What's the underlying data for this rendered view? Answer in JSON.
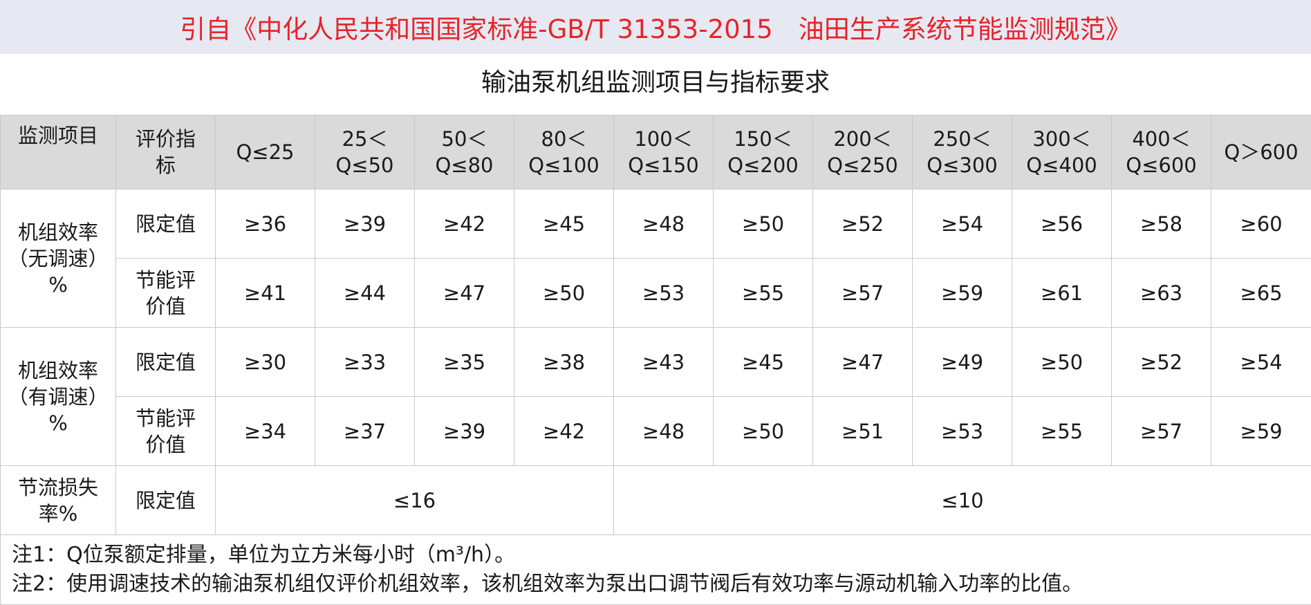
{
  "banner": {
    "text": "引自《中化人民共和国国家标准-GB/T 31353-2015　油田生产系统节能监测规范》"
  },
  "subtitle": "输油泵机组监测项目与指标要求",
  "table": {
    "header": {
      "item": "监测项目",
      "indicator": "评价指标",
      "ranges": [
        "Q≤25",
        "25＜Q≤50",
        "50＜Q≤80",
        "80＜Q≤100",
        "100＜Q≤150",
        "150＜Q≤200",
        "200＜Q≤250",
        "250＜Q≤300",
        "300＜Q≤400",
        "400＜Q≤600",
        "Q＞600"
      ]
    },
    "groups": [
      {
        "item": "机组效率（无调速）%",
        "rows": [
          {
            "indicator": "限定值",
            "values": [
              "≥36",
              "≥39",
              "≥42",
              "≥45",
              "≥48",
              "≥50",
              "≥52",
              "≥54",
              "≥56",
              "≥58",
              "≥60"
            ]
          },
          {
            "indicator": "节能评价值",
            "values": [
              "≥41",
              "≥44",
              "≥47",
              "≥50",
              "≥53",
              "≥55",
              "≥57",
              "≥59",
              "≥61",
              "≥63",
              "≥65"
            ]
          }
        ]
      },
      {
        "item": "机组效率（有调速）%",
        "rows": [
          {
            "indicator": "限定值",
            "values": [
              "≥30",
              "≥33",
              "≥35",
              "≥38",
              "≥43",
              "≥45",
              "≥47",
              "≥49",
              "≥50",
              "≥52",
              "≥54"
            ]
          },
          {
            "indicator": "节能评价值",
            "values": [
              "≥34",
              "≥37",
              "≥39",
              "≥42",
              "≥48",
              "≥50",
              "≥51",
              "≥53",
              "≥55",
              "≥57",
              "≥59"
            ]
          }
        ]
      }
    ],
    "throttle": {
      "item": "节流损失率%",
      "indicator": "限定值",
      "value_low": "≤16",
      "value_high": "≤10"
    },
    "notes": [
      "注1：Q位泵额定排量，单位为立方米每小时（m³/h）。",
      "注2：使用调速技术的输油泵机组仅评价机组效率，该机组效率为泵出口调节阀后有效功率与源动机输入功率的比值。"
    ]
  }
}
